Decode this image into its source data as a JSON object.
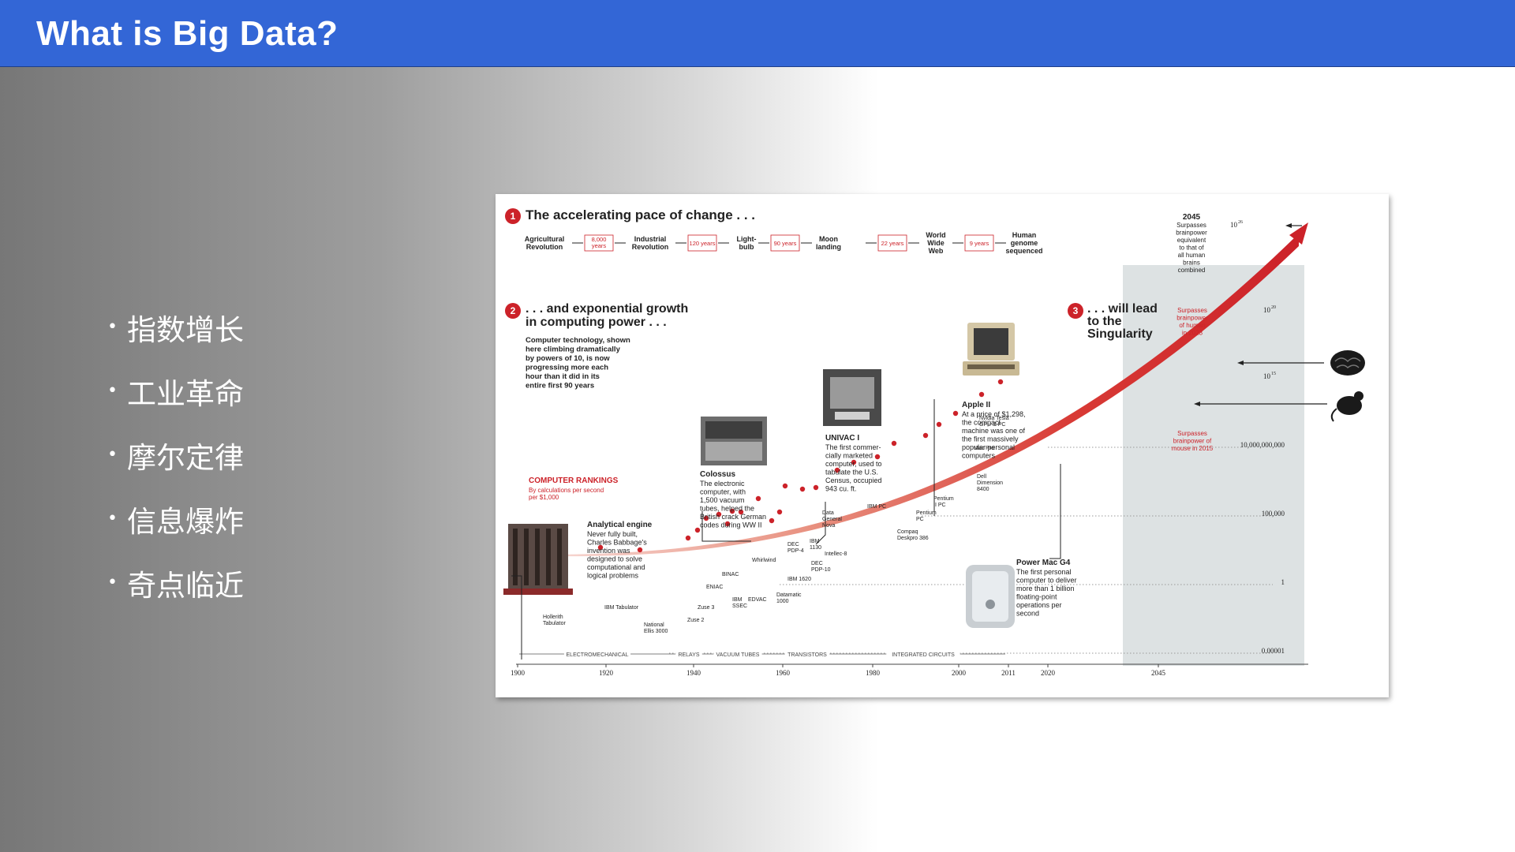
{
  "slide": {
    "title": "What is Big Data?",
    "bullets": [
      "指数增长",
      "工业革命",
      "摩尔定律",
      "信息爆炸",
      "奇点临近"
    ]
  },
  "figure": {
    "section1": {
      "number": "1",
      "title": "The accelerating pace of change . . ."
    },
    "milestones": [
      {
        "label": [
          "Agricultural",
          "Revolution"
        ]
      },
      {
        "label": [
          "Industrial",
          "Revolution"
        ]
      },
      {
        "label": [
          "Light-",
          "bulb"
        ]
      },
      {
        "label": [
          "Moon",
          "landing"
        ]
      },
      {
        "label": [
          "World",
          "Wide",
          "Web"
        ]
      },
      {
        "label": [
          "Human",
          "genome",
          "sequenced"
        ]
      }
    ],
    "intervals": [
      {
        "label": [
          "8,000",
          "years"
        ]
      },
      {
        "label": [
          "120 years"
        ]
      },
      {
        "label": [
          "90 years"
        ]
      },
      {
        "label": [
          "22 years"
        ]
      },
      {
        "label": [
          "9 years"
        ]
      }
    ],
    "section2": {
      "number": "2",
      "title": [
        ". . . and exponential growth",
        "in computing power . . ."
      ],
      "body": [
        "Computer technology, shown",
        "here climbing dramatically",
        "by powers of 10, is now",
        "progressing more each",
        "hour than it did in its",
        "entire first 90 years"
      ]
    },
    "section3": {
      "number": "3",
      "title": [
        ". . . will lead",
        "to the",
        "Singularity"
      ]
    },
    "rankings": {
      "title": "COMPUTER RANKINGS",
      "subtitle": [
        "By calculations per second",
        "per $1,000"
      ]
    },
    "callouts": [
      {
        "title": "Analytical engine",
        "body": [
          "Never fully built,",
          "Charles Babbage's",
          "invention was",
          "designed to solve",
          "computational and",
          "logical problems"
        ]
      },
      {
        "title": "Colossus",
        "body": [
          "The electronic",
          "computer, with",
          "1,500 vacuum",
          "tubes, helped the",
          "British crack German",
          "codes during WW II"
        ]
      },
      {
        "title": "UNIVAC I",
        "body": [
          "The first commer-",
          "cially marketed",
          "computer, used to",
          "tabulate the U.S.",
          "Census, occupied",
          "943 cu. ft."
        ]
      },
      {
        "title": "Apple II",
        "body": [
          "At a price of $1,298,",
          "the compact",
          "machine was one of",
          "the first massively",
          "popular personal",
          "computers"
        ]
      },
      {
        "title": "Power Mac G4",
        "body": [
          "The first personal",
          "computer to deliver",
          "more than 1 billion",
          "floating-point",
          "operations per",
          "second"
        ]
      }
    ],
    "machines": [
      {
        "label": [
          "Hollerith",
          "Tabulator"
        ]
      },
      {
        "label": [
          "IBM Tabulator"
        ]
      },
      {
        "label": [
          "National",
          "Ellis 3000"
        ]
      },
      {
        "label": [
          "Zuse 2"
        ]
      },
      {
        "label": [
          "Zuse 3"
        ]
      },
      {
        "label": [
          "ENIAC"
        ]
      },
      {
        "label": [
          "BINAC"
        ]
      },
      {
        "label": [
          "IBM",
          "SSEC"
        ]
      },
      {
        "label": [
          "EDVAC"
        ]
      },
      {
        "label": [
          "Whirlwind"
        ]
      },
      {
        "label": [
          "Datamatic",
          "1000"
        ]
      },
      {
        "label": [
          "IBM 1620"
        ]
      },
      {
        "label": [
          "DEC",
          "PDP-4"
        ]
      },
      {
        "label": [
          "IBM",
          "1130"
        ]
      },
      {
        "label": [
          "DEC",
          "PDP-10"
        ]
      },
      {
        "label": [
          "Intellec-8"
        ]
      },
      {
        "label": [
          "Data",
          "General",
          "Nova"
        ]
      },
      {
        "label": [
          "IBM PC"
        ]
      },
      {
        "label": [
          "Compaq",
          "Deskpro 386"
        ]
      },
      {
        "label": [
          "Pentium",
          "PC"
        ]
      },
      {
        "label": [
          "Pentium",
          "II PC"
        ]
      },
      {
        "label": [
          "Dell",
          "Dimension",
          "8400"
        ]
      },
      {
        "label": [
          "Mac Pro"
        ]
      },
      {
        "label": [
          "Nvidia Tesla",
          "GPU & PC"
        ]
      }
    ],
    "yaxis_labels": [
      "0.00001",
      "1",
      "100,000",
      "10,000,000,000",
      "10",
      "15",
      "10",
      "20",
      "10",
      "26"
    ],
    "xaxis_labels": [
      "1900",
      "1920",
      "1940",
      "1960",
      "1980",
      "2000",
      "2011",
      "2020",
      "2045"
    ],
    "eras": [
      "ELECTROMECHANICAL",
      "RELAYS",
      "VACUUM TUBES",
      "TRANSISTORS",
      "INTEGRATED CIRCUITS"
    ],
    "right_notes": {
      "year": "2045",
      "n2045": [
        "Surpasses",
        "brainpower",
        "equivalent",
        "to that of",
        "all human",
        "brains",
        "combined"
      ],
      "n2023": [
        "Surpasses",
        "brainpower",
        "of human",
        "in 2023"
      ],
      "n2015": [
        "Surpasses",
        "brainpower of",
        "mouse in 2015"
      ]
    },
    "colors": {
      "accent_red": "#cc2229",
      "header_blue": "#3366d6"
    }
  }
}
